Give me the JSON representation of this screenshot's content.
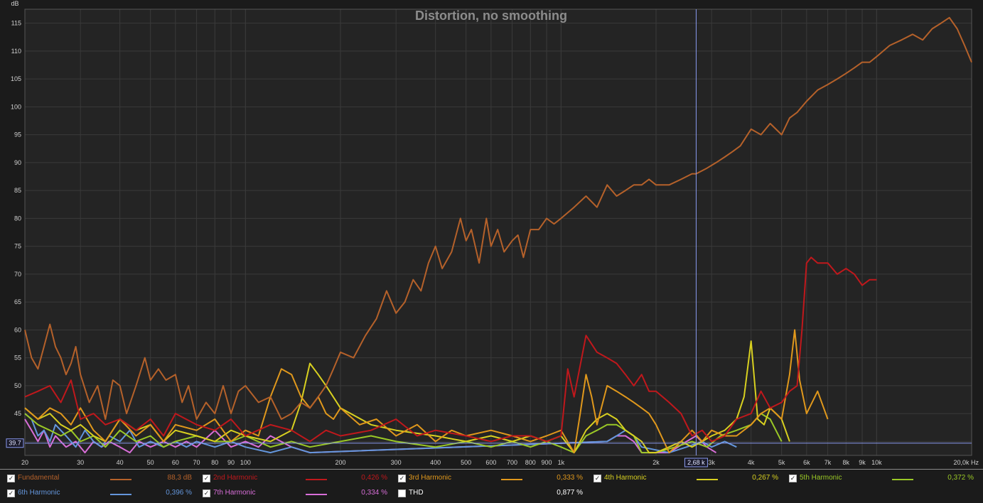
{
  "chart_data": {
    "type": "line",
    "title": "Distortion, no smoothing",
    "ylabel": "dB",
    "xlabel": "Hz",
    "x_scale": "log",
    "xlim": [
      20,
      20000
    ],
    "ylim": [
      37.5,
      117.5
    ],
    "y_ticks": [
      "115",
      "110",
      "105",
      "100",
      "95",
      "90",
      "85",
      "80",
      "75",
      "70",
      "65",
      "60",
      "55",
      "50",
      "45"
    ],
    "y_tick_values": [
      115,
      110,
      105,
      100,
      95,
      90,
      85,
      80,
      75,
      70,
      65,
      60,
      55,
      50,
      45
    ],
    "x_ticks": [
      "20",
      "30",
      "40",
      "50",
      "60",
      "70",
      "80",
      "90",
      "100",
      "200",
      "300",
      "400",
      "500",
      "600",
      "700",
      "800",
      "900",
      "1k",
      "2k",
      "3k",
      "4k",
      "5k",
      "6k",
      "7k",
      "8k",
      "9k",
      "10k",
      "20,0k Hz"
    ],
    "x_tick_values": [
      20,
      30,
      40,
      50,
      60,
      70,
      80,
      90,
      100,
      200,
      300,
      400,
      500,
      600,
      700,
      800,
      900,
      1000,
      2000,
      3000,
      4000,
      5000,
      6000,
      7000,
      8000,
      9000,
      10000,
      20000
    ],
    "grid": true,
    "cursor": {
      "x": 2680,
      "x_label": "2,68 k",
      "y": 39.7,
      "y_label": "39.7"
    },
    "series": [
      {
        "name": "Fundamental",
        "color": "#b5612a",
        "x": [
          20,
          21,
          22,
          23,
          24,
          25,
          26,
          27,
          28,
          29,
          30,
          32,
          34,
          36,
          38,
          40,
          42,
          45,
          48,
          50,
          53,
          56,
          60,
          63,
          66,
          70,
          75,
          80,
          85,
          90,
          95,
          100,
          110,
          120,
          130,
          140,
          150,
          160,
          170,
          180,
          190,
          200,
          220,
          240,
          260,
          280,
          300,
          320,
          340,
          360,
          380,
          400,
          420,
          450,
          480,
          500,
          520,
          550,
          580,
          600,
          630,
          660,
          700,
          730,
          760,
          800,
          850,
          900,
          950,
          1000,
          1100,
          1200,
          1300,
          1400,
          1500,
          1600,
          1700,
          1800,
          1900,
          2000,
          2200,
          2400,
          2600,
          2680,
          2900,
          3100,
          3300,
          3500,
          3700,
          4000,
          4300,
          4600,
          5000,
          5300,
          5600,
          6000,
          6500,
          7000,
          7500,
          8000,
          8500,
          9000,
          9500,
          10000,
          11000,
          12000,
          13000,
          14000,
          15000,
          16000,
          17000,
          18000,
          19000,
          20000
        ],
        "y": [
          60,
          55,
          53,
          57,
          61,
          57,
          55,
          52,
          54,
          57,
          52,
          47,
          50,
          44,
          51,
          50,
          45,
          50,
          55,
          51,
          53,
          51,
          52,
          47,
          50,
          44,
          47,
          45,
          50,
          45,
          49,
          50,
          47,
          48,
          44,
          45,
          47,
          46,
          48,
          50,
          53,
          56,
          55,
          59,
          62,
          67,
          63,
          65,
          69,
          67,
          72,
          75,
          71,
          74,
          80,
          76,
          78,
          72,
          80,
          75,
          78,
          74,
          76,
          77,
          73,
          78,
          78,
          80,
          79,
          80,
          82,
          84,
          82,
          86,
          84,
          85,
          86,
          86,
          87,
          86,
          86,
          87,
          88,
          88,
          89,
          90,
          91,
          92,
          93,
          96,
          95,
          97,
          95,
          98,
          99,
          101,
          103,
          104,
          105,
          106,
          107,
          108,
          108,
          109,
          111,
          112,
          113,
          112,
          114,
          115,
          116,
          114,
          111,
          108
        ]
      },
      {
        "name": "2nd Harmonic",
        "color": "#c0181c",
        "x": [
          20,
          22,
          24,
          26,
          28,
          30,
          33,
          36,
          40,
          45,
          50,
          55,
          60,
          70,
          80,
          90,
          100,
          120,
          140,
          160,
          180,
          200,
          250,
          300,
          350,
          400,
          500,
          600,
          700,
          800,
          900,
          1000,
          1050,
          1100,
          1200,
          1300,
          1400,
          1500,
          1600,
          1700,
          1800,
          1900,
          2000,
          2200,
          2400,
          2600,
          2800,
          3000,
          3300,
          3600,
          4000,
          4300,
          4600,
          5000,
          5300,
          5600,
          5800,
          6000,
          6200,
          6500,
          7000,
          7500,
          8000,
          8500,
          9000,
          9500,
          10000
        ],
        "y": [
          48,
          49,
          50,
          47,
          51,
          44,
          45,
          43,
          44,
          42,
          44,
          41,
          45,
          43,
          42,
          44,
          41,
          43,
          42,
          40,
          42,
          41,
          42,
          44,
          41,
          42,
          41,
          40,
          41,
          41,
          40,
          41,
          53,
          48,
          59,
          56,
          55,
          54,
          52,
          50,
          52,
          49,
          49,
          47,
          45,
          41,
          42,
          40,
          41,
          44,
          45,
          49,
          46,
          47,
          49,
          50,
          60,
          72,
          73,
          72,
          72,
          70,
          71,
          70,
          68,
          69,
          69
        ]
      },
      {
        "name": "3rd Harmonic",
        "color": "#e0981c",
        "x": [
          20,
          22,
          24,
          26,
          28,
          30,
          33,
          36,
          40,
          45,
          50,
          55,
          60,
          70,
          80,
          90,
          100,
          110,
          120,
          130,
          140,
          150,
          160,
          170,
          180,
          190,
          200,
          230,
          260,
          300,
          350,
          400,
          450,
          500,
          600,
          700,
          800,
          900,
          1000,
          1100,
          1150,
          1200,
          1250,
          1300,
          1400,
          1500,
          1600,
          1700,
          1800,
          1900,
          2000,
          2200,
          2400,
          2600,
          2800,
          3000,
          3300,
          3600,
          4000,
          4300,
          4600,
          5000,
          5300,
          5500,
          5700,
          6000,
          6500,
          7000
        ],
        "y": [
          46,
          44,
          46,
          45,
          43,
          46,
          42,
          40,
          44,
          41,
          43,
          40,
          43,
          42,
          44,
          40,
          42,
          41,
          48,
          53,
          52,
          48,
          46,
          48,
          45,
          44,
          46,
          43,
          44,
          41,
          43,
          40,
          42,
          41,
          42,
          41,
          40,
          41,
          42,
          38,
          45,
          52,
          48,
          43,
          50,
          49,
          48,
          47,
          46,
          45,
          43,
          38,
          40,
          42,
          40,
          42,
          41,
          41,
          43,
          45,
          46,
          44,
          52,
          60,
          51,
          45,
          49,
          44
        ]
      },
      {
        "name": "4th Harmonic",
        "color": "#d8d020",
        "x": [
          20,
          22,
          24,
          26,
          28,
          30,
          33,
          36,
          40,
          45,
          50,
          55,
          60,
          70,
          80,
          90,
          100,
          120,
          140,
          150,
          160,
          170,
          180,
          200,
          250,
          300,
          400,
          500,
          600,
          700,
          800,
          900,
          1000,
          1100,
          1200,
          1300,
          1400,
          1500,
          1600,
          1700,
          1800,
          1900,
          2000,
          2200,
          2400,
          2600,
          2800,
          3000,
          3300,
          3600,
          3800,
          4000,
          4200,
          4400,
          4600,
          4800,
          5000,
          5300
        ],
        "y": [
          46,
          44,
          45,
          43,
          42,
          43,
          41,
          40,
          44,
          42,
          43,
          40,
          42,
          41,
          40,
          42,
          41,
          40,
          42,
          47,
          54,
          52,
          50,
          46,
          43,
          42,
          41,
          40,
          41,
          40,
          41,
          40,
          41,
          38,
          42,
          44,
          45,
          44,
          42,
          41,
          40,
          38,
          38,
          39,
          40,
          39,
          40,
          41,
          42,
          44,
          48,
          58,
          44,
          43,
          46,
          45,
          44,
          40
        ]
      },
      {
        "name": "5th Harmonic",
        "color": "#9ac826",
        "x": [
          20,
          22,
          24,
          26,
          28,
          30,
          33,
          36,
          40,
          45,
          50,
          55,
          60,
          70,
          80,
          90,
          100,
          120,
          140,
          160,
          200,
          250,
          300,
          400,
          500,
          600,
          700,
          800,
          900,
          1000,
          1100,
          1200,
          1300,
          1400,
          1500,
          1600,
          1700,
          1800,
          2000,
          2300,
          2600,
          2900,
          3200,
          3600,
          4000,
          4300,
          4600,
          5000
        ],
        "y": [
          45,
          43,
          42,
          41,
          42,
          40,
          41,
          39,
          42,
          40,
          41,
          39,
          40,
          41,
          40,
          40,
          41,
          39,
          40,
          39,
          40,
          41,
          40,
          39,
          40,
          39,
          40,
          39,
          40,
          39,
          38,
          41,
          42,
          43,
          43,
          42,
          41,
          38,
          38,
          39,
          40,
          39,
          41,
          42,
          43,
          45,
          44,
          40
        ]
      },
      {
        "name": "6th Harmonic",
        "color": "#6496dc",
        "x": [
          20,
          21,
          22,
          23,
          24,
          25,
          27,
          29,
          31,
          33,
          35,
          37,
          40,
          43,
          46,
          50,
          55,
          60,
          65,
          70,
          80,
          90,
          100,
          120,
          140,
          160,
          1400,
          1500,
          1600,
          1700,
          1800,
          2200,
          2500,
          2800,
          3000,
          3300,
          3600
        ],
        "y": [
          45,
          44,
          41,
          42,
          40,
          43,
          41,
          39,
          42,
          40,
          39,
          41,
          40,
          42,
          39,
          40,
          39,
          40,
          39,
          40,
          39,
          40,
          39,
          38,
          39,
          38,
          40,
          41,
          42,
          41,
          39,
          38,
          39,
          40,
          39,
          40,
          39
        ]
      },
      {
        "name": "7th Harmonic",
        "color": "#d86ed8",
        "x": [
          20,
          21,
          22,
          23,
          24,
          25,
          27,
          29,
          31,
          33,
          35,
          37,
          40,
          43,
          46,
          50,
          55,
          60,
          65,
          70,
          80,
          90,
          100,
          110,
          120,
          140,
          160,
          1400,
          1500,
          1600,
          1700,
          1800,
          2200,
          2500,
          2680,
          2900,
          3100
        ],
        "y": [
          44,
          42,
          40,
          42,
          39,
          41,
          39,
          40,
          38,
          40,
          39,
          40,
          39,
          38,
          40,
          39,
          40,
          39,
          40,
          39,
          42,
          39,
          40,
          39,
          41,
          39,
          38,
          40,
          41,
          41,
          40,
          38,
          38,
          40,
          41,
          39,
          38
        ]
      }
    ]
  },
  "legend": [
    {
      "name": "Fundamental",
      "value": "88,3 dB",
      "checked": true,
      "color": "#b5612a"
    },
    {
      "name": "2nd Harmonic",
      "value": "0,426 %",
      "checked": true,
      "color": "#c0181c"
    },
    {
      "name": "3rd Harmonic",
      "value": "0,333 %",
      "checked": true,
      "color": "#e0981c"
    },
    {
      "name": "4th Harmonic",
      "value": "0,267 %",
      "checked": true,
      "color": "#d8d020"
    },
    {
      "name": "5th Harmonic",
      "value": "0,372 %",
      "checked": true,
      "color": "#9ac826"
    },
    {
      "name": "6th Harmonic",
      "value": "0,396 %",
      "checked": true,
      "color": "#6496dc"
    },
    {
      "name": "7th Harmonic",
      "value": "0,334 %",
      "checked": true,
      "color": "#d86ed8"
    },
    {
      "name": "THD",
      "value": "0,877 %",
      "checked": false,
      "color": "#ffffff"
    }
  ]
}
